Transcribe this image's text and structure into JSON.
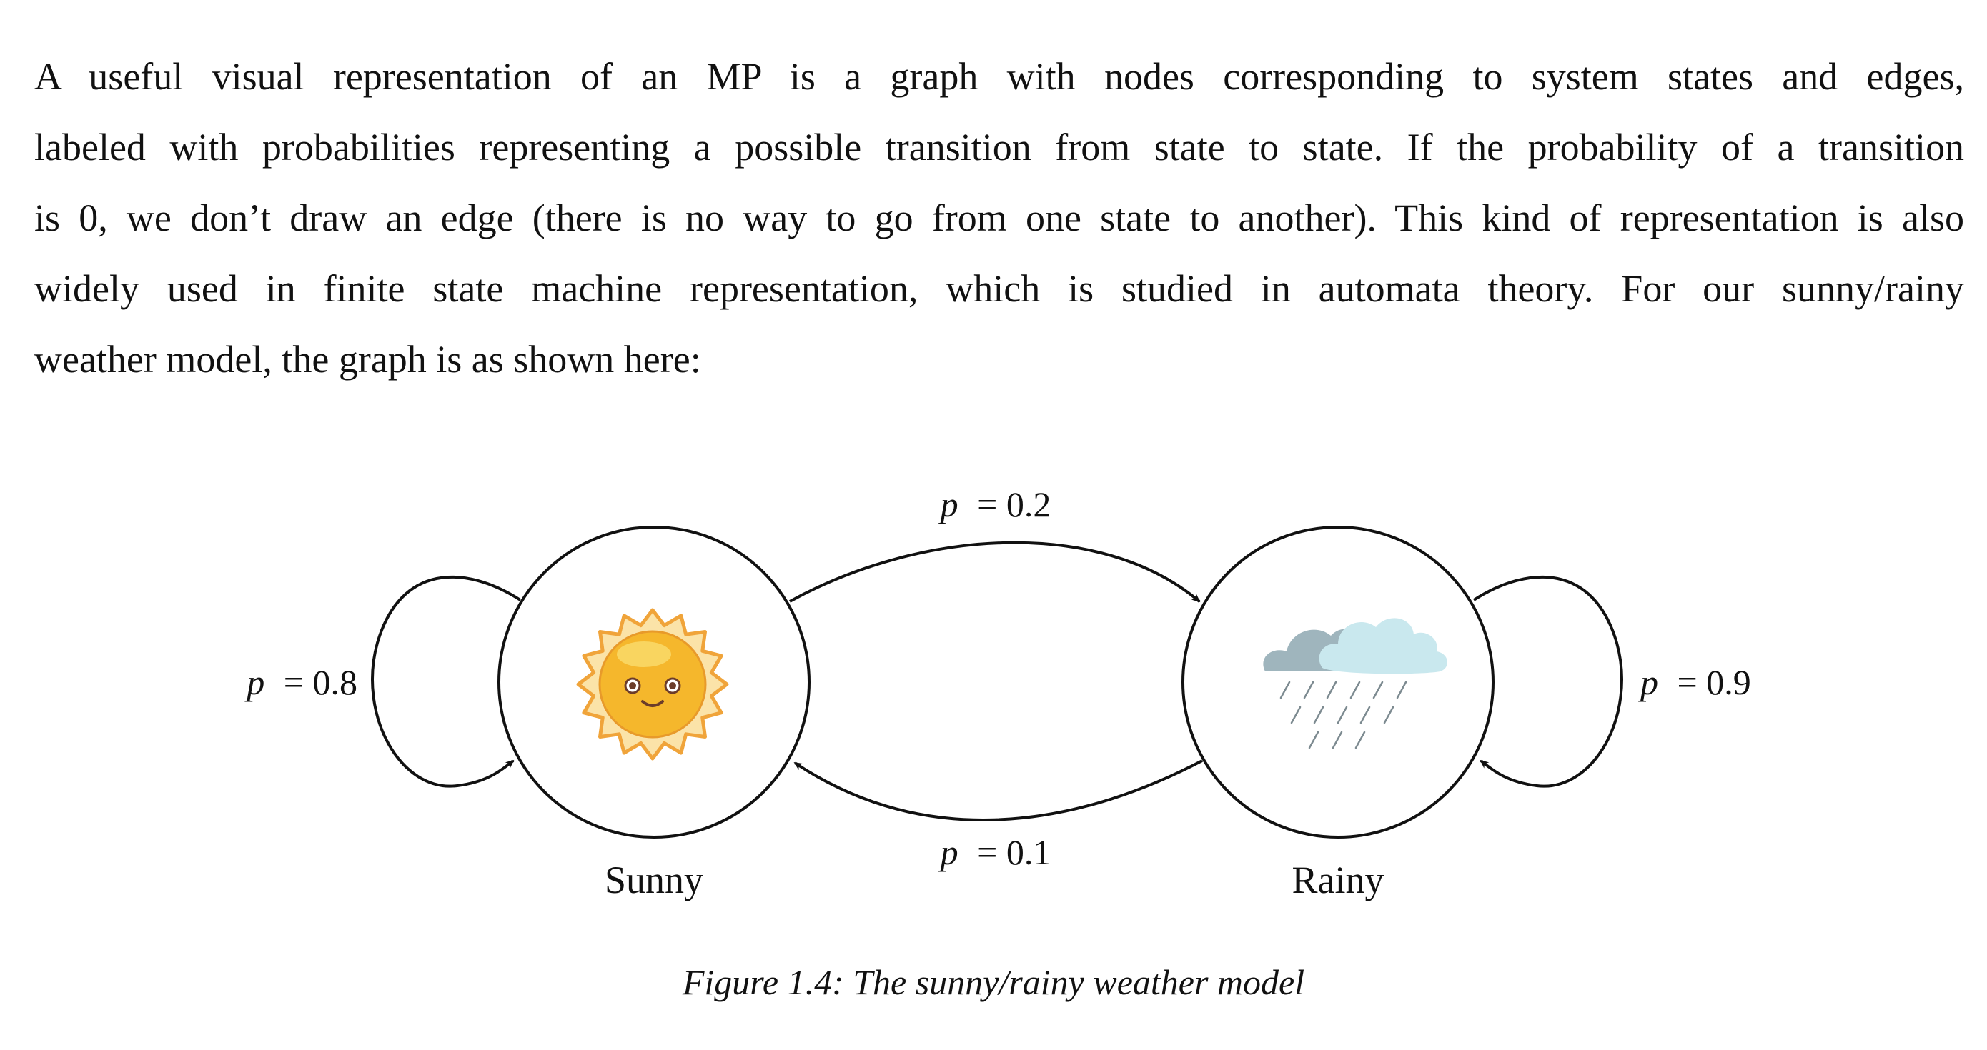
{
  "paragraph": {
    "lines": [
      "A useful visual representation of an MP is a graph with nodes corresponding to system states and edges,",
      "labeled with probabilities representing a possible transition from state to state. If the probability of a transition",
      "is 0, we don’t draw an edge (there is no way to go from one state to another). This kind of representation is also",
      "widely used in finite state machine representation, which is studied in automata theory. For our sunny/rainy",
      "weather model, the graph is as shown here:"
    ]
  },
  "diagram": {
    "states": {
      "sunny": {
        "label": "Sunny",
        "icon": "sun-icon"
      },
      "rainy": {
        "label": "Rainy",
        "icon": "rain-cloud-icon"
      }
    },
    "transitions": {
      "sunny_to_sunny": {
        "var": "p",
        "value": "= 0.8"
      },
      "sunny_to_rainy": {
        "var": "p",
        "value": "= 0.2"
      },
      "rainy_to_sunny": {
        "var": "p",
        "value": "= 0.1"
      },
      "rainy_to_rainy": {
        "var": "p",
        "value": "= 0.9"
      }
    },
    "colors": {
      "sun_face": "#f5b72c",
      "sun_rays": "#f0a43a",
      "cloud_dark": "#9fb5bd",
      "cloud_light": "#c9e8ee",
      "rain": "#7c8a90"
    }
  },
  "caption": "Figure 1.4: The sunny/rainy weather model"
}
